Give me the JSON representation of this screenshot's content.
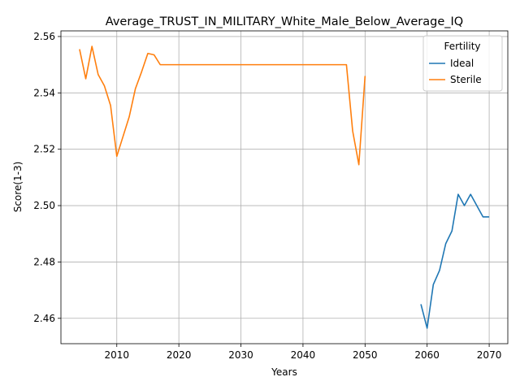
{
  "chart_data": {
    "type": "line",
    "title": "Average_TRUST_IN_MILITARY_White_Male_Below_Average_IQ",
    "xlabel": "Years",
    "ylabel": "Score(1-3)",
    "xlim": [
      2001,
      2073
    ],
    "ylim": [
      2.451,
      2.562
    ],
    "xticks": [
      2010,
      2020,
      2030,
      2040,
      2050,
      2060,
      2070
    ],
    "yticks": [
      2.46,
      2.48,
      2.5,
      2.52,
      2.54,
      2.56
    ],
    "grid": true,
    "legend": {
      "title": "Fertility",
      "placement": "top-right"
    },
    "series": [
      {
        "name": "Ideal",
        "color": "#1f77b4",
        "x": [
          2059,
          2060,
          2061,
          2062,
          2063,
          2064,
          2065,
          2066,
          2067,
          2068,
          2069,
          2070
        ],
        "y": [
          2.465,
          2.4565,
          2.472,
          2.477,
          2.4865,
          2.491,
          2.504,
          2.5,
          2.504,
          2.5,
          2.496,
          2.496
        ]
      },
      {
        "name": "Sterile",
        "color": "#ff7f0e",
        "x": [
          2004,
          2005,
          2006,
          2007,
          2008,
          2009,
          2010,
          2011,
          2012,
          2013,
          2014,
          2015,
          2016,
          2017,
          2018,
          2019,
          2020,
          2025,
          2030,
          2035,
          2040,
          2045,
          2046,
          2047,
          2048,
          2049,
          2050
        ],
        "y": [
          2.5555,
          2.545,
          2.5565,
          2.5465,
          2.5425,
          2.5355,
          2.5175,
          2.5245,
          2.5315,
          2.5415,
          2.5475,
          2.554,
          2.5535,
          2.55,
          2.55,
          2.55,
          2.55,
          2.55,
          2.55,
          2.55,
          2.55,
          2.55,
          2.55,
          2.55,
          2.5265,
          2.5145,
          2.546
        ]
      }
    ]
  }
}
